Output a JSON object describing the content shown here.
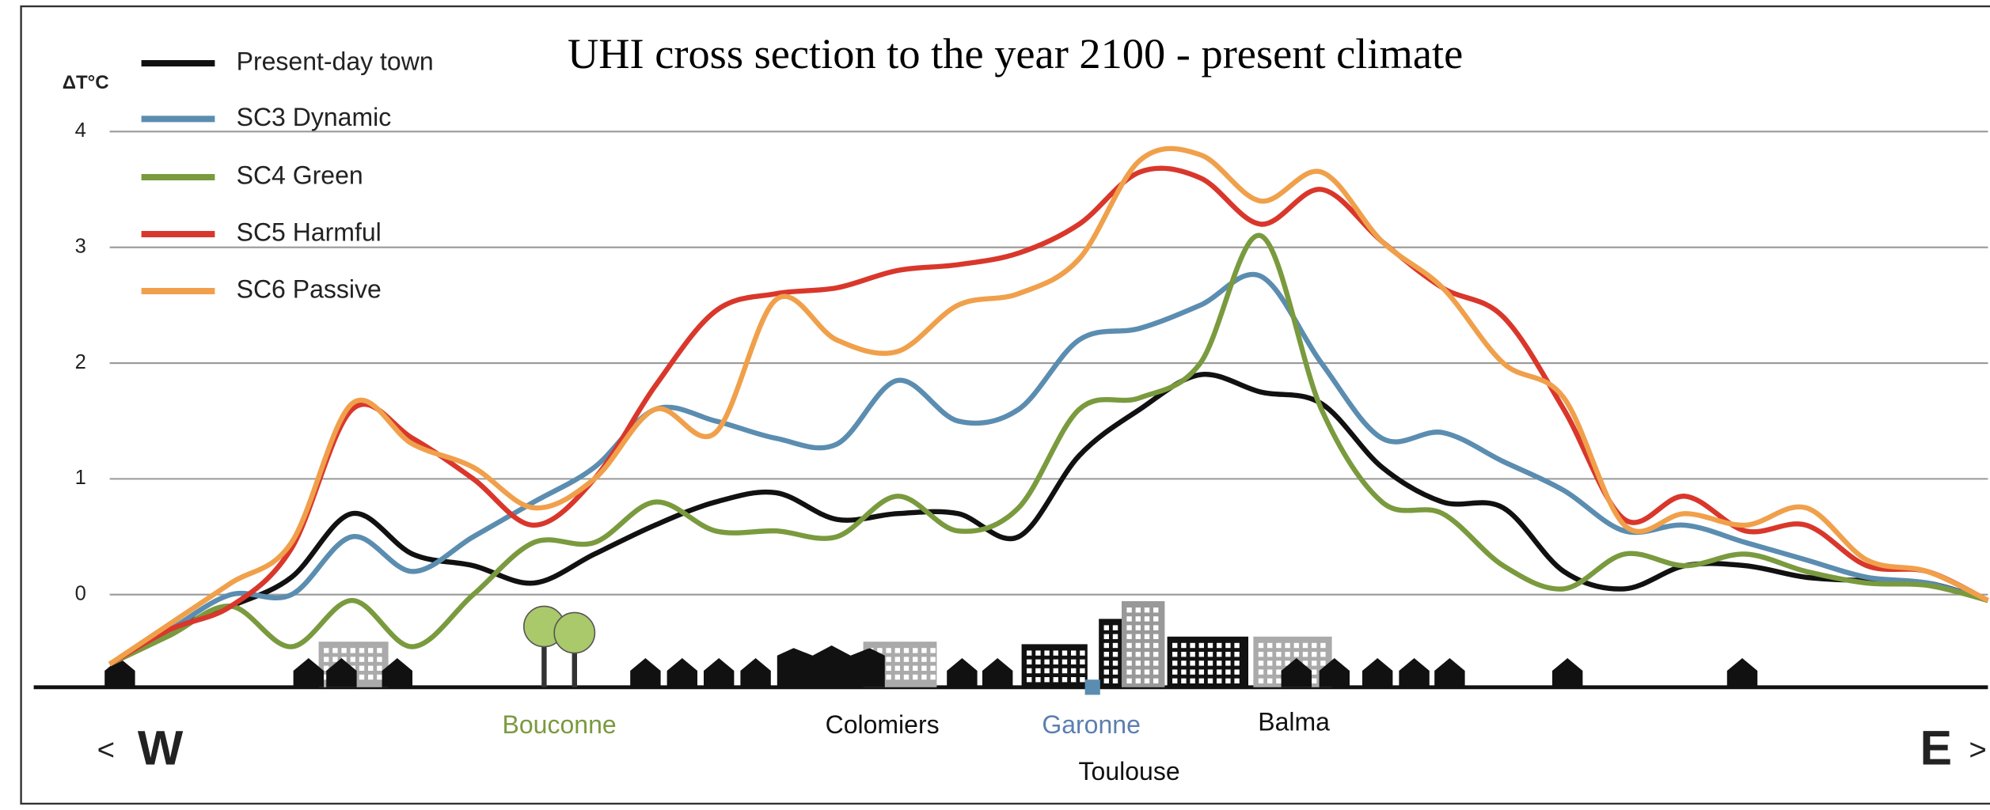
{
  "chart_data": {
    "type": "line",
    "title": "UHI cross section  to the year 2100 - present climate",
    "y_label": "ΔT°C",
    "categories": [
      null,
      null,
      null,
      null,
      null,
      null,
      null,
      null,
      null,
      null,
      null,
      null,
      null,
      null,
      null,
      null,
      null,
      null,
      null,
      null,
      null,
      null,
      null,
      null,
      null,
      null,
      null,
      null,
      null,
      null,
      null,
      null
    ],
    "series": [
      {
        "name": "Present-day town",
        "color": "#111111",
        "values": [
          -0.6,
          -0.3,
          -0.1,
          0.15,
          0.7,
          0.35,
          0.25,
          0.1,
          0.35,
          0.6,
          0.8,
          0.88,
          0.65,
          0.7,
          0.7,
          0.5,
          1.2,
          1.6,
          1.9,
          1.75,
          1.65,
          1.1,
          0.8,
          0.75,
          0.2,
          0.05,
          0.25,
          0.25,
          0.15,
          0.12,
          0.1,
          -0.05
        ]
      },
      {
        "name": "SC3 Dynamic",
        "color": "#5b8db0",
        "values": [
          -0.6,
          -0.3,
          0.0,
          0.0,
          0.5,
          0.2,
          0.5,
          0.8,
          1.1,
          1.6,
          1.5,
          1.35,
          1.3,
          1.85,
          1.5,
          1.6,
          2.2,
          2.3,
          2.5,
          2.75,
          2.0,
          1.35,
          1.4,
          1.15,
          0.9,
          0.55,
          0.6,
          0.45,
          0.3,
          0.15,
          0.1,
          -0.05
        ]
      },
      {
        "name": "SC4 Green",
        "color": "#7a9a3e",
        "values": [
          -0.6,
          -0.35,
          -0.1,
          -0.45,
          -0.05,
          -0.45,
          0.0,
          0.45,
          0.45,
          0.8,
          0.55,
          0.55,
          0.5,
          0.85,
          0.55,
          0.75,
          1.6,
          1.7,
          2.0,
          3.1,
          1.6,
          0.8,
          0.7,
          0.25,
          0.05,
          0.35,
          0.25,
          0.35,
          0.2,
          0.1,
          0.08,
          -0.05
        ]
      },
      {
        "name": "SC5 Harmful",
        "color": "#d9372b",
        "values": [
          -0.6,
          -0.3,
          -0.1,
          0.4,
          1.6,
          1.35,
          1.0,
          0.6,
          1.0,
          1.8,
          2.45,
          2.6,
          2.65,
          2.8,
          2.85,
          2.95,
          3.2,
          3.65,
          3.6,
          3.2,
          3.5,
          3.05,
          2.65,
          2.4,
          1.6,
          0.65,
          0.85,
          0.55,
          0.6,
          0.25,
          0.2,
          -0.05
        ]
      },
      {
        "name": "SC6 Passive",
        "color": "#f0a04b",
        "values": [
          -0.6,
          -0.25,
          0.1,
          0.45,
          1.65,
          1.3,
          1.1,
          0.75,
          1.0,
          1.6,
          1.4,
          2.55,
          2.2,
          2.1,
          2.5,
          2.6,
          2.9,
          3.75,
          3.8,
          3.4,
          3.65,
          3.05,
          2.65,
          2.0,
          1.7,
          0.6,
          0.7,
          0.6,
          0.75,
          0.3,
          0.2,
          -0.05
        ]
      }
    ],
    "ylim": [
      -0.8,
      5
    ],
    "yticks": [
      0,
      1,
      2,
      3,
      4
    ],
    "grid": true,
    "legend": "upper-left",
    "annotations": [
      {
        "text": "<",
        "color": "#222222"
      },
      {
        "text": "W",
        "color": "#222222"
      },
      {
        "text": "Bouconne",
        "color": "#7a9a3e"
      },
      {
        "text": "Colomiers",
        "color": "#111111"
      },
      {
        "text": "Garonne",
        "color": "#5b7fb0"
      },
      {
        "text": "Balma",
        "color": "#111111"
      },
      {
        "text": "Toulouse",
        "color": "#111111"
      },
      {
        "text": "E",
        "color": "#222222"
      },
      {
        "text": ">",
        "color": "#222222"
      }
    ]
  }
}
